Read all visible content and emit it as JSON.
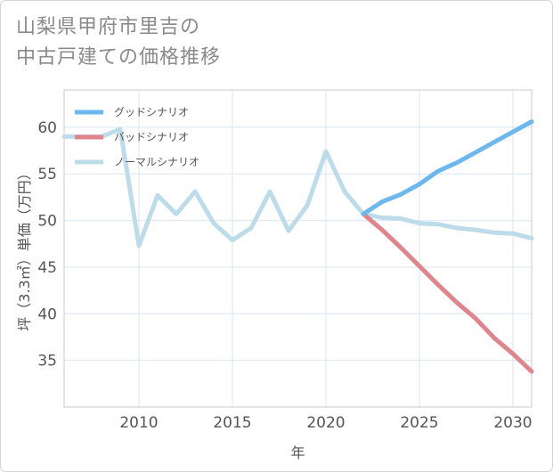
{
  "title": {
    "line1": "山梨県甲府市里吉の",
    "line2": "中古戸建ての価格推移"
  },
  "colors": {
    "good": "#6bb8ee",
    "bad": "#e0858c",
    "normal": "#bcdcea",
    "grid": "#d9e6f0",
    "frame": "#d6d6d6"
  },
  "chart_data": {
    "type": "line",
    "title": "山梨県甲府市里吉の中古戸建ての価格推移",
    "xlabel": "年",
    "ylabel": "坪（3.3㎡）単価（万円）",
    "xlim": [
      2006,
      2031
    ],
    "ylim": [
      30,
      64
    ],
    "xticks": [
      2010,
      2015,
      2020,
      2025,
      2030
    ],
    "yticks": [
      35,
      40,
      45,
      50,
      55,
      60
    ],
    "legend_position": "top-left",
    "series": [
      {
        "name": "グッドシナリオ",
        "key": "good",
        "x": [
          2022,
          2023,
          2024,
          2025,
          2026,
          2027,
          2028,
          2029,
          2030,
          2031
        ],
        "y": [
          50.7,
          52.0,
          52.8,
          53.9,
          55.3,
          56.2,
          57.3,
          58.4,
          59.5,
          60.6
        ]
      },
      {
        "name": "バッドシナリオ",
        "key": "bad",
        "x": [
          2022,
          2023,
          2024,
          2025,
          2026,
          2027,
          2028,
          2029,
          2030,
          2031
        ],
        "y": [
          50.7,
          49.0,
          47.1,
          45.1,
          43.1,
          41.2,
          39.5,
          37.4,
          35.7,
          33.8
        ]
      },
      {
        "name": "ノーマルシナリオ",
        "key": "normal",
        "x": [
          2006,
          2007,
          2008,
          2009,
          2010,
          2011,
          2012,
          2013,
          2014,
          2015,
          2016,
          2017,
          2018,
          2019,
          2020,
          2021,
          2022,
          2023,
          2024,
          2025,
          2026,
          2027,
          2028,
          2029,
          2030,
          2031
        ],
        "y": [
          59.0,
          59.0,
          59.0,
          59.8,
          47.3,
          52.7,
          50.7,
          53.1,
          49.7,
          47.9,
          49.2,
          53.1,
          48.9,
          51.6,
          57.4,
          53.1,
          50.7,
          50.3,
          50.2,
          49.7,
          49.6,
          49.2,
          49.0,
          48.7,
          48.6,
          48.1
        ]
      }
    ]
  }
}
